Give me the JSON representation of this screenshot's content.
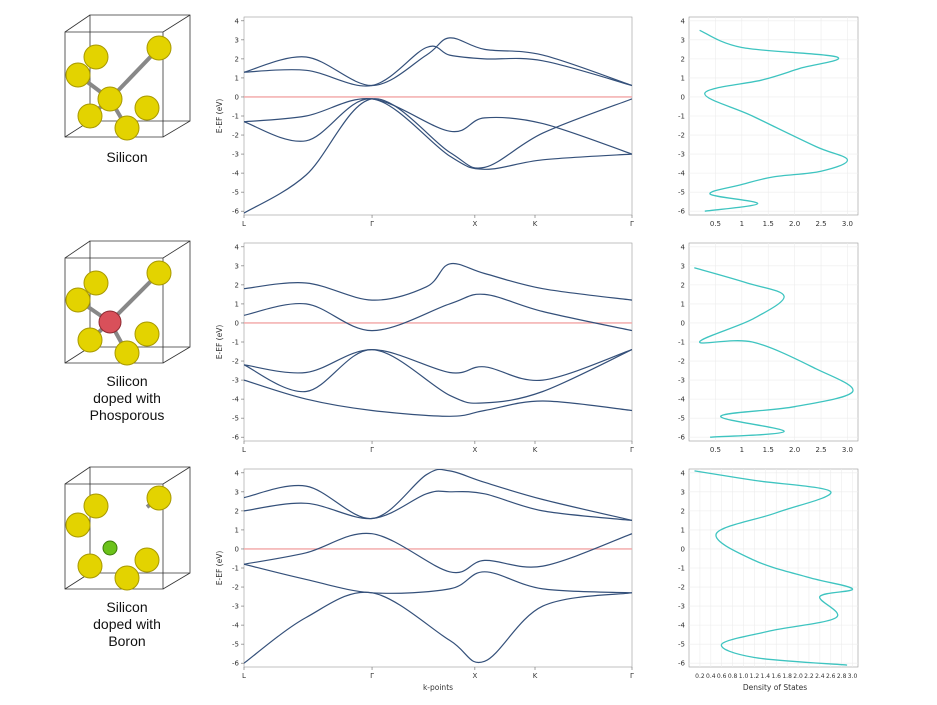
{
  "figure": {
    "xlabel_bands": "k-points",
    "xlabel_dos": "Density of States",
    "ylabel": "E-EF (eV)",
    "k_labels": [
      "L",
      "Γ",
      "X",
      "K",
      "Γ"
    ],
    "dos_ticks_rows_1_2": [
      "0.5",
      "1",
      "1.5",
      "2.0",
      "2.5",
      "3.0"
    ],
    "dos_ticks_row_3": [
      "0.2",
      "0.4",
      "0.6",
      "0.8",
      "1.0",
      "1.2",
      "1.4",
      "1.6",
      "1.8",
      "2.0",
      "2.2",
      "2.4",
      "2.6",
      "2.8",
      "3.0"
    ],
    "energy_ticks": [
      "4",
      "3",
      "2",
      "1",
      "0",
      "-1",
      "-2",
      "-3",
      "-4",
      "-5",
      "-6"
    ],
    "colors": {
      "band": "#34507a",
      "fermi": "#f2a5a5",
      "dos": "#3ec4c0",
      "grid": "#ececec",
      "atom_si": "#e3d300",
      "atom_p": "#d9505a",
      "atom_b": "#6bc21a"
    }
  },
  "rows": [
    {
      "caption": [
        "Silicon"
      ],
      "dopant": "none"
    },
    {
      "caption": [
        "Silicon",
        "doped with",
        "Phosporous"
      ],
      "dopant": "P"
    },
    {
      "caption": [
        "Silicon",
        "doped with",
        "Boron"
      ],
      "dopant": "B"
    }
  ],
  "chart_data": [
    {
      "type": "line",
      "title": "",
      "xlabel": "",
      "ylabel": "E-EF (eV)",
      "x_ticks": [
        "L",
        "Γ",
        "X",
        "K",
        "Γ"
      ],
      "ylim": [
        -6.2,
        4.2
      ],
      "bands": [
        [
          [
            0,
            -6.1
          ],
          [
            0.16,
            -4.1
          ],
          [
            0.33,
            -0.1
          ],
          [
            0.53,
            -2.9
          ],
          [
            0.62,
            -3.7
          ],
          [
            0.77,
            -1.9
          ],
          [
            1,
            -0.1
          ]
        ],
        [
          [
            0,
            -1.3
          ],
          [
            0.16,
            -2.3
          ],
          [
            0.33,
            -0.1
          ],
          [
            0.53,
            -3.1
          ],
          [
            0.62,
            -3.8
          ],
          [
            0.77,
            -3.3
          ],
          [
            1,
            -3.0
          ]
        ],
        [
          [
            0,
            -1.3
          ],
          [
            0.16,
            -1.0
          ],
          [
            0.33,
            -0.1
          ],
          [
            0.53,
            -1.8
          ],
          [
            0.62,
            -1.1
          ],
          [
            0.77,
            -1.4
          ],
          [
            1,
            -3.0
          ]
        ],
        [
          [
            0,
            1.3
          ],
          [
            0.16,
            2.1
          ],
          [
            0.33,
            0.6
          ],
          [
            0.47,
            2.2
          ],
          [
            0.53,
            3.1
          ],
          [
            0.62,
            2.5
          ],
          [
            0.77,
            2.2
          ],
          [
            1,
            0.6
          ]
        ],
        [
          [
            0,
            1.3
          ],
          [
            0.16,
            1.4
          ],
          [
            0.33,
            0.6
          ],
          [
            0.47,
            2.6
          ],
          [
            0.53,
            2.2
          ],
          [
            0.62,
            2.0
          ],
          [
            0.77,
            1.9
          ],
          [
            1,
            0.6
          ]
        ]
      ]
    },
    {
      "type": "line",
      "title": "",
      "xlabel": "Density of States",
      "ylabel": "E-EF (eV)",
      "xlim": [
        0,
        3.2
      ],
      "ylim": [
        -6.2,
        4.2
      ],
      "dos": [
        [
          0.3,
          -6.0
        ],
        [
          1.3,
          -5.6
        ],
        [
          0.4,
          -5.1
        ],
        [
          1.0,
          -4.6
        ],
        [
          1.6,
          -4.2
        ],
        [
          2.5,
          -3.9
        ],
        [
          3.0,
          -3.3
        ],
        [
          2.4,
          -2.6
        ],
        [
          1.2,
          -1.0
        ],
        [
          0.3,
          0.2
        ],
        [
          1.4,
          0.9
        ],
        [
          2.1,
          1.5
        ],
        [
          2.8,
          2.1
        ],
        [
          1.0,
          2.6
        ],
        [
          0.2,
          3.5
        ]
      ]
    },
    {
      "type": "line",
      "title": "",
      "xlabel": "",
      "ylabel": "E-EF (eV)",
      "x_ticks": [
        "L",
        "Γ",
        "X",
        "K",
        "Γ"
      ],
      "ylim": [
        -6.2,
        4.2
      ],
      "bands": [
        [
          [
            0,
            -3.0
          ],
          [
            0.16,
            -4.0
          ],
          [
            0.33,
            -4.6
          ],
          [
            0.53,
            -4.9
          ],
          [
            0.62,
            -4.6
          ],
          [
            0.77,
            -4.1
          ],
          [
            1,
            -4.6
          ]
        ],
        [
          [
            0,
            -2.2
          ],
          [
            0.16,
            -3.6
          ],
          [
            0.33,
            -1.4
          ],
          [
            0.53,
            -3.8
          ],
          [
            0.62,
            -4.2
          ],
          [
            0.77,
            -3.6
          ],
          [
            1,
            -1.4
          ]
        ],
        [
          [
            0,
            -2.2
          ],
          [
            0.16,
            -2.6
          ],
          [
            0.33,
            -1.4
          ],
          [
            0.53,
            -2.6
          ],
          [
            0.62,
            -2.3
          ],
          [
            0.77,
            -3.0
          ],
          [
            1,
            -1.4
          ]
        ],
        [
          [
            0,
            0.4
          ],
          [
            0.16,
            1.0
          ],
          [
            0.33,
            -0.4
          ],
          [
            0.53,
            1.0
          ],
          [
            0.62,
            1.5
          ],
          [
            0.77,
            0.6
          ],
          [
            1,
            -0.4
          ]
        ],
        [
          [
            0,
            1.8
          ],
          [
            0.16,
            2.1
          ],
          [
            0.33,
            1.2
          ],
          [
            0.47,
            1.9
          ],
          [
            0.53,
            3.1
          ],
          [
            0.62,
            2.6
          ],
          [
            0.77,
            1.8
          ],
          [
            1,
            1.2
          ]
        ]
      ]
    },
    {
      "type": "line",
      "title": "",
      "xlabel": "Density of States",
      "ylabel": "E-EF (eV)",
      "xlim": [
        0,
        3.2
      ],
      "ylim": [
        -6.2,
        4.2
      ],
      "dos": [
        [
          0.4,
          -6.0
        ],
        [
          1.8,
          -5.7
        ],
        [
          0.6,
          -4.9
        ],
        [
          2.0,
          -4.4
        ],
        [
          3.1,
          -3.6
        ],
        [
          2.4,
          -2.4
        ],
        [
          1.2,
          -1.0
        ],
        [
          0.2,
          -1.0
        ],
        [
          1.2,
          0.2
        ],
        [
          1.8,
          1.4
        ],
        [
          1.1,
          2.1
        ],
        [
          0.1,
          2.9
        ]
      ]
    },
    {
      "type": "line",
      "title": "",
      "xlabel": "k-points",
      "ylabel": "E-EF (eV)",
      "x_ticks": [
        "L",
        "Γ",
        "X",
        "K",
        "Γ"
      ],
      "ylim": [
        -6.2,
        4.2
      ],
      "bands": [
        [
          [
            0,
            -6.0
          ],
          [
            0.16,
            -3.6
          ],
          [
            0.33,
            -2.3
          ],
          [
            0.53,
            -4.8
          ],
          [
            0.62,
            -5.9
          ],
          [
            0.77,
            -3.0
          ],
          [
            1,
            -2.3
          ]
        ],
        [
          [
            0,
            -0.8
          ],
          [
            0.16,
            -1.6
          ],
          [
            0.33,
            -2.3
          ],
          [
            0.53,
            -2.1
          ],
          [
            0.62,
            -1.2
          ],
          [
            0.77,
            -2.1
          ],
          [
            1,
            -2.3
          ]
        ],
        [
          [
            0,
            -0.8
          ],
          [
            0.16,
            -0.2
          ],
          [
            0.33,
            0.8
          ],
          [
            0.53,
            -1.2
          ],
          [
            0.62,
            -0.6
          ],
          [
            0.77,
            -0.9
          ],
          [
            1,
            0.8
          ]
        ],
        [
          [
            0,
            2.7
          ],
          [
            0.16,
            3.3
          ],
          [
            0.33,
            1.6
          ],
          [
            0.47,
            3.9
          ],
          [
            0.53,
            4.1
          ],
          [
            0.62,
            3.5
          ],
          [
            0.77,
            2.6
          ],
          [
            1,
            1.5
          ]
        ],
        [
          [
            0,
            2.0
          ],
          [
            0.16,
            2.4
          ],
          [
            0.33,
            1.6
          ],
          [
            0.47,
            2.9
          ],
          [
            0.53,
            3.0
          ],
          [
            0.62,
            2.9
          ],
          [
            0.77,
            2.0
          ],
          [
            1,
            1.5
          ]
        ]
      ]
    },
    {
      "type": "line",
      "title": "",
      "xlabel": "Density of States",
      "ylabel": "E-EF (eV)",
      "xlim": [
        0,
        3.1
      ],
      "ylim": [
        -6.2,
        4.2
      ],
      "dos": [
        [
          2.9,
          -6.1
        ],
        [
          1.2,
          -5.7
        ],
        [
          0.6,
          -5.0
        ],
        [
          1.5,
          -4.3
        ],
        [
          2.7,
          -3.6
        ],
        [
          2.4,
          -2.5
        ],
        [
          3.0,
          -2.1
        ],
        [
          2.2,
          -1.5
        ],
        [
          1.2,
          -0.6
        ],
        [
          0.5,
          0.8
        ],
        [
          1.6,
          1.9
        ],
        [
          2.6,
          3.0
        ],
        [
          1.2,
          3.6
        ],
        [
          0.1,
          4.1
        ]
      ]
    }
  ]
}
